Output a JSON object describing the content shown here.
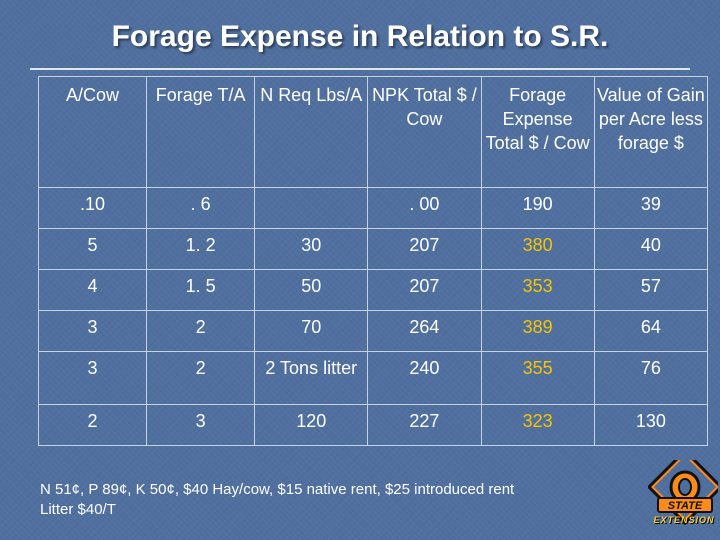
{
  "slide": {
    "title": "Forage Expense in Relation to S.R.",
    "highlight_color": "#f7c400",
    "background_color": "#4f6f9e"
  },
  "table": {
    "headers": [
      "A/Cow",
      "Forage T/A",
      "N Req Lbs/A",
      "NPK Total $ / Cow",
      "Forage Expense Total $ / Cow",
      "Value of Gain per Acre less forage $"
    ],
    "rows": [
      [
        ".10",
        ". 6",
        "",
        ". 00",
        "190",
        "39"
      ],
      [
        "5",
        "1. 2",
        "30",
        "207",
        "380",
        "40"
      ],
      [
        "4",
        "1. 5",
        "50",
        "207",
        "353",
        "57"
      ],
      [
        "3",
        "2",
        "70",
        "264",
        "389",
        "64"
      ],
      [
        "3",
        "2",
        "2 Tons litter",
        "240",
        "355",
        "76"
      ],
      [
        "2",
        "3",
        "120",
        "227",
        "323",
        "130"
      ]
    ]
  },
  "footnote": {
    "line1": "N 51¢, P 89¢, K 50¢, $40 Hay/cow, $15 native rent, $25 introduced rent",
    "line2": "Litter $40/T"
  },
  "logo": {
    "icon": "oklahoma-state-extension-logo",
    "text": "EXTENSION"
  }
}
